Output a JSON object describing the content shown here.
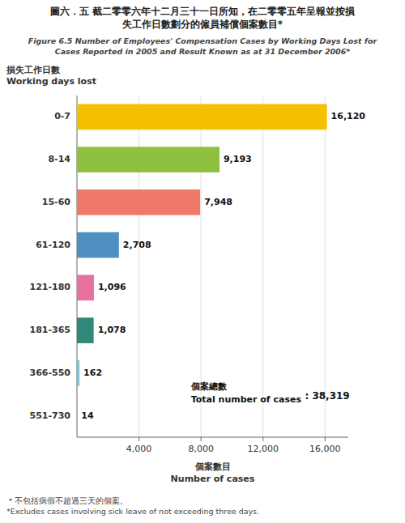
{
  "chart_data": {
    "type": "bar",
    "orientation": "horizontal",
    "title": "圖六．五  截二零零六年十二月三十一日所知，在二零零五年呈報並按損\n失工作日數劃分的僱員補償個案數目*",
    "subtitle": "Figure 6.5  Number of Employees' Compensation Cases by Working Days Lost for\nCases Reported in 2005 and Result Known as at 31 December 2006*",
    "ylabel": "損失工作日數\nWorking days lost",
    "xlabel": "個案數目\nNumber of cases",
    "categories": [
      "0-7",
      "8-14",
      "15-60",
      "61-120",
      "121-180",
      "181-365",
      "366-550",
      "551-730"
    ],
    "values": [
      16120,
      9193,
      7948,
      2708,
      1096,
      1078,
      162,
      14
    ],
    "value_labels": [
      "16,120",
      "9,193",
      "7,948",
      "2,708",
      "1,096",
      "1,078",
      "162",
      "14"
    ],
    "colors": [
      "#F5C000",
      "#90C040",
      "#F07868",
      "#5090C0",
      "#E870A0",
      "#308878",
      "#70C8D0",
      "#70C8D0"
    ],
    "data_labels": true,
    "xlim": [
      0,
      17500
    ],
    "xticks": [
      {
        "value": 4000,
        "label": "4,000"
      },
      {
        "value": 8000,
        "label": "8,000"
      },
      {
        "value": 12000,
        "label": "12,000"
      },
      {
        "value": 16000,
        "label": "16,000"
      }
    ],
    "grid": true,
    "annotations": [
      {
        "text": "個案總數\nTotal number of cases"
      },
      {
        "text": ":  38,319"
      }
    ],
    "footnote": "＊不包括病假不超過三天的個案。\n*Excludes cases involving sick leave of not exceeding three days."
  }
}
